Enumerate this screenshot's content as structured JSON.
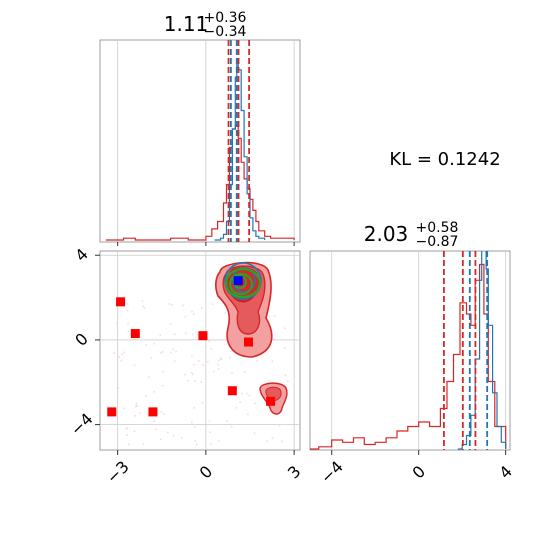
{
  "chart_data": {
    "type": "corner",
    "kl_label": "KL = 0.1242",
    "panels": {
      "hist_x": {
        "title": {
          "value": "1.11",
          "sup": "+0.36",
          "sub": "−0.34"
        },
        "xlim": [
          -3.6,
          3.2
        ],
        "vlines_blue": [
          0.85,
          1.05
        ],
        "vlines_red": [
          0.77,
          1.11,
          1.47
        ],
        "hist_blue": {
          "x": [
            0.3,
            0.5,
            0.6,
            0.7,
            0.8,
            0.9,
            1.0,
            1.05,
            1.1,
            1.2,
            1.3,
            1.4,
            1.5,
            1.6,
            1.7,
            1.8,
            2.0
          ],
          "y": [
            0.0,
            0.01,
            0.03,
            0.1,
            0.3,
            0.6,
            0.88,
            0.98,
            0.92,
            0.7,
            0.45,
            0.25,
            0.12,
            0.05,
            0.02,
            0.01,
            0.0
          ]
        },
        "hist_red": {
          "x": [
            -3.4,
            -2.8,
            -2.4,
            -1.8,
            -1.2,
            -0.6,
            0.0,
            0.2,
            0.4,
            0.6,
            0.7,
            0.8,
            0.9,
            1.0,
            1.1,
            1.2,
            1.3,
            1.4,
            1.5,
            1.6,
            1.7,
            1.8,
            2.0,
            2.2,
            2.6,
            3.0
          ],
          "y": [
            0.0,
            0.01,
            0.0,
            0.0,
            0.01,
            0.0,
            0.02,
            0.06,
            0.1,
            0.2,
            0.3,
            0.5,
            0.6,
            0.62,
            0.55,
            0.42,
            0.33,
            0.28,
            0.22,
            0.16,
            0.1,
            0.05,
            0.02,
            0.01,
            0.01,
            0.0
          ]
        }
      },
      "hist_y": {
        "title": {
          "value": "2.03",
          "sup": "+0.58",
          "sub": "−0.87"
        },
        "xlim": [
          -5.0,
          4.2
        ],
        "xticks": [
          -4,
          0,
          4
        ],
        "vlines_blue": [
          2.35,
          3.15
        ],
        "vlines_red": [
          1.16,
          2.03,
          2.61
        ],
        "hist_blue": {
          "x": [
            1.8,
            2.0,
            2.2,
            2.4,
            2.6,
            2.8,
            2.9,
            3.0,
            3.1,
            3.2,
            3.4,
            3.6,
            3.8,
            4.0
          ],
          "y": [
            0.0,
            0.02,
            0.06,
            0.15,
            0.4,
            0.75,
            0.9,
            0.92,
            0.8,
            0.55,
            0.25,
            0.1,
            0.03,
            0.0
          ]
        },
        "hist_red": {
          "x": [
            -5.0,
            -4.6,
            -4.0,
            -3.5,
            -3.0,
            -2.5,
            -2.0,
            -1.5,
            -1.0,
            -0.5,
            0.0,
            0.5,
            1.0,
            1.3,
            1.6,
            1.9,
            2.2,
            2.4,
            2.6,
            2.8,
            3.0,
            3.2,
            3.5,
            4.0
          ],
          "y": [
            0.0,
            0.01,
            0.04,
            0.03,
            0.05,
            0.02,
            0.03,
            0.05,
            0.08,
            0.1,
            0.12,
            0.1,
            0.18,
            0.3,
            0.42,
            0.65,
            0.6,
            0.55,
            0.75,
            0.82,
            0.6,
            0.3,
            0.1,
            0.0
          ]
        }
      },
      "scatter_2d": {
        "xlim": [
          -3.6,
          3.2
        ],
        "ylim": [
          -5.2,
          4.2
        ],
        "xticks": [
          -3,
          0,
          3
        ],
        "yticks": [
          -4,
          0,
          4
        ],
        "red_squares": [
          {
            "x": -2.9,
            "y": 1.8
          },
          {
            "x": -2.4,
            "y": 0.3
          },
          {
            "x": -0.1,
            "y": 0.2
          },
          {
            "x": 1.45,
            "y": -0.1
          },
          {
            "x": 0.9,
            "y": -2.4
          },
          {
            "x": 2.2,
            "y": -2.9
          },
          {
            "x": -1.8,
            "y": -3.4
          },
          {
            "x": -3.2,
            "y": -3.4
          }
        ],
        "blue_square": {
          "x": 1.1,
          "y": 2.8
        }
      }
    }
  }
}
